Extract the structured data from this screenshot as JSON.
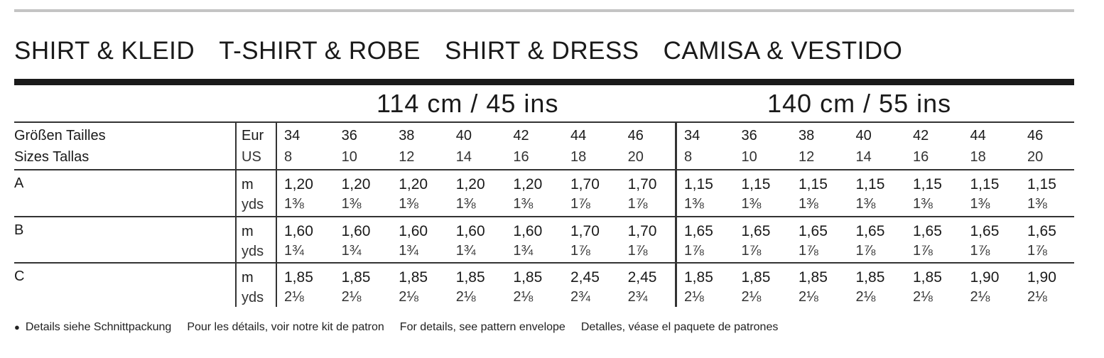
{
  "titles": [
    "SHIRT & KLEID",
    "T-SHIRT & ROBE",
    "SHIRT & DRESS",
    "CAMISA & VESTIDO"
  ],
  "widths": [
    "114 cm / 45 ins",
    "140 cm / 55 ins"
  ],
  "size_labels": {
    "line1": "Größen  Tailles",
    "line2": "Sizes  Tallas",
    "eur": "Eur",
    "us": "US"
  },
  "sizes_eur": [
    "34",
    "36",
    "38",
    "40",
    "42",
    "44",
    "46"
  ],
  "sizes_us": [
    "8",
    "10",
    "12",
    "14",
    "16",
    "18",
    "20"
  ],
  "units": {
    "m": "m",
    "yds": "yds"
  },
  "rows": [
    {
      "label": "A",
      "m": [
        "1,20",
        "1,20",
        "1,20",
        "1,20",
        "1,20",
        "1,70",
        "1,70",
        "1,15",
        "1,15",
        "1,15",
        "1,15",
        "1,15",
        "1,15",
        "1,15"
      ],
      "yds": [
        "1⅜",
        "1⅜",
        "1⅜",
        "1⅜",
        "1⅜",
        "1⅞",
        "1⅞",
        "1⅜",
        "1⅜",
        "1⅜",
        "1⅜",
        "1⅜",
        "1⅜",
        "1⅜"
      ]
    },
    {
      "label": "B",
      "m": [
        "1,60",
        "1,60",
        "1,60",
        "1,60",
        "1,60",
        "1,70",
        "1,70",
        "1,65",
        "1,65",
        "1,65",
        "1,65",
        "1,65",
        "1,65",
        "1,65"
      ],
      "yds": [
        "1¾",
        "1¾",
        "1¾",
        "1¾",
        "1¾",
        "1⅞",
        "1⅞",
        "1⅞",
        "1⅞",
        "1⅞",
        "1⅞",
        "1⅞",
        "1⅞",
        "1⅞"
      ]
    },
    {
      "label": "C",
      "m": [
        "1,85",
        "1,85",
        "1,85",
        "1,85",
        "1,85",
        "2,45",
        "2,45",
        "1,85",
        "1,85",
        "1,85",
        "1,85",
        "1,85",
        "1,90",
        "1,90"
      ],
      "yds": [
        "2⅛",
        "2⅛",
        "2⅛",
        "2⅛",
        "2⅛",
        "2¾",
        "2¾",
        "2⅛",
        "2⅛",
        "2⅛",
        "2⅛",
        "2⅛",
        "2⅛",
        "2⅛"
      ]
    }
  ],
  "footer": {
    "bullet": "●",
    "notes": [
      "Details siehe Schnittpackung",
      "Pour les détails, voir notre kit de patron",
      "For details, see pattern envelope",
      "Detalles, véase el paquete de patrones"
    ]
  }
}
